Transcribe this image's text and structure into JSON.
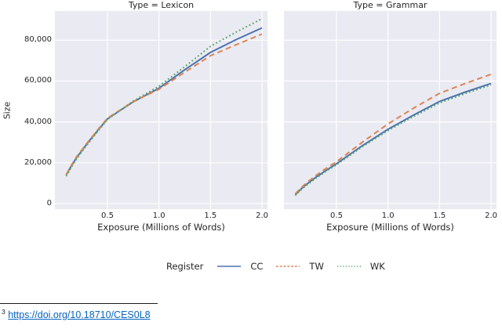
{
  "colors": {
    "cc_blue": "#4C72B0",
    "tw_orange": "#DD8452",
    "wk_green": "#55A868",
    "panel_bg": "#EAEAF2",
    "grid": "#FFFFFF",
    "text": "#262626",
    "link_blue": "#0563C1"
  },
  "legend": {
    "title": "Register",
    "entries": [
      {
        "label": "CC",
        "color": "#4C72B0",
        "dash": ""
      },
      {
        "label": "TW",
        "color": "#DD8452",
        "dash": "2.8,2"
      },
      {
        "label": "WK",
        "color": "#55A868",
        "dash": "1.2,2.4"
      }
    ]
  },
  "footnote": {
    "marker": "3",
    "link": "https://doi.org/10.18710/CES0L8"
  },
  "chart_data": [
    {
      "type": "line",
      "title": "Type = Lexicon",
      "xlabel": "Exposure (Millions of Words)",
      "ylabel": "Size",
      "xlim": [
        -0.01,
        2.053
      ],
      "ylim": [
        -2700,
        94300
      ],
      "xticks": [
        0.5,
        1.0,
        1.5,
        2.0
      ],
      "xtick_labels": [
        "0.5",
        "1.0",
        "1.5",
        "2.0"
      ],
      "yticks": [
        0,
        20000,
        40000,
        60000,
        80000
      ],
      "ytick_labels": [
        "0",
        "20,000",
        "40,000",
        "60,000",
        "80,000"
      ],
      "grid": true,
      "legend_position": "bottom-center",
      "x": [
        0.1,
        0.15,
        0.2,
        0.3,
        0.4,
        0.5,
        0.75,
        1.0,
        1.25,
        1.5,
        1.75,
        2.0
      ],
      "series": [
        {
          "name": "CC",
          "color": "#4C72B0",
          "dash": "",
          "values": [
            14000,
            18500,
            22500,
            29200,
            35500,
            41500,
            49800,
            56500,
            65500,
            74000,
            80300,
            86000
          ]
        },
        {
          "name": "TW",
          "color": "#DD8452",
          "dash": "7,4.5",
          "values": [
            14200,
            18800,
            22900,
            29500,
            35800,
            41800,
            49900,
            56000,
            64300,
            72400,
            77800,
            83000
          ]
        },
        {
          "name": "WK",
          "color": "#55A868",
          "dash": "1.8,3",
          "values": [
            13400,
            17800,
            21900,
            28600,
            35000,
            41200,
            50200,
            57500,
            67000,
            77000,
            84000,
            90500
          ]
        }
      ]
    },
    {
      "type": "line",
      "title": "Type = Grammar",
      "xlabel": "Exposure (Millions of Words)",
      "ylabel": "Size",
      "xlim": [
        -0.01,
        2.053
      ],
      "ylim": [
        -2700,
        94300
      ],
      "xticks": [
        0.5,
        1.0,
        1.5,
        2.0
      ],
      "xtick_labels": [
        "0.5",
        "1.0",
        "1.5",
        "2.0"
      ],
      "yticks": [
        0,
        20000,
        40000,
        60000,
        80000
      ],
      "ytick_labels": [],
      "grid": true,
      "legend_position": "bottom-center",
      "x": [
        0.1,
        0.15,
        0.2,
        0.3,
        0.4,
        0.5,
        0.75,
        1.0,
        1.25,
        1.5,
        1.75,
        2.0
      ],
      "series": [
        {
          "name": "CC",
          "color": "#4C72B0",
          "dash": "",
          "values": [
            4300,
            6900,
            9100,
            12900,
            16300,
            19500,
            28300,
            36400,
            43400,
            50000,
            54600,
            58800
          ]
        },
        {
          "name": "TW",
          "color": "#DD8452",
          "dash": "7,4.5",
          "values": [
            4800,
            7400,
            9800,
            13800,
            17300,
            20500,
            30000,
            39000,
            46800,
            54000,
            58800,
            63300
          ]
        },
        {
          "name": "WK",
          "color": "#55A868",
          "dash": "1.8,3",
          "values": [
            4000,
            6500,
            8700,
            12400,
            15900,
            19000,
            27800,
            35800,
            42700,
            49300,
            53900,
            58100
          ]
        }
      ]
    }
  ]
}
